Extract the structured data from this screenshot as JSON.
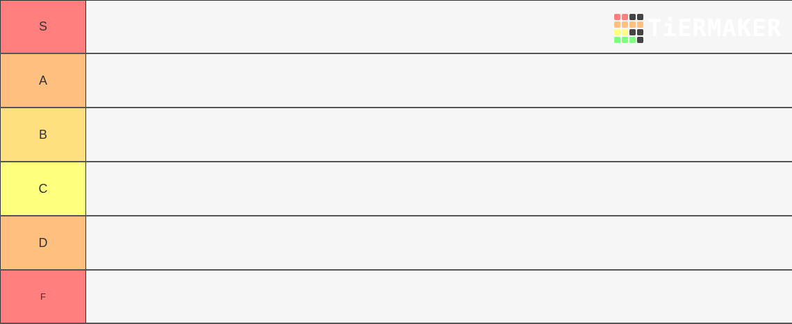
{
  "tiers": [
    {
      "label": "S",
      "color": "#ff7f7f"
    },
    {
      "label": "A",
      "color": "#ffbf7f"
    },
    {
      "label": "B",
      "color": "#ffdf7f"
    },
    {
      "label": "C",
      "color": "#ffff7f"
    },
    {
      "label": "D",
      "color": "#ffbf7f"
    },
    {
      "label": "F",
      "color": "#ff7f7f"
    }
  ],
  "logo": {
    "text": "TiERMAKER",
    "grid_colors": [
      "#ff7f7f",
      "#ff7f7f",
      "#444444",
      "#444444",
      "#ffbf7f",
      "#ffbf7f",
      "#ffbf7f",
      "#ffbf7f",
      "#ffff7f",
      "#ffff7f",
      "#444444",
      "#444444",
      "#7fff7f",
      "#7fff7f",
      "#7fff7f",
      "#444444"
    ]
  }
}
